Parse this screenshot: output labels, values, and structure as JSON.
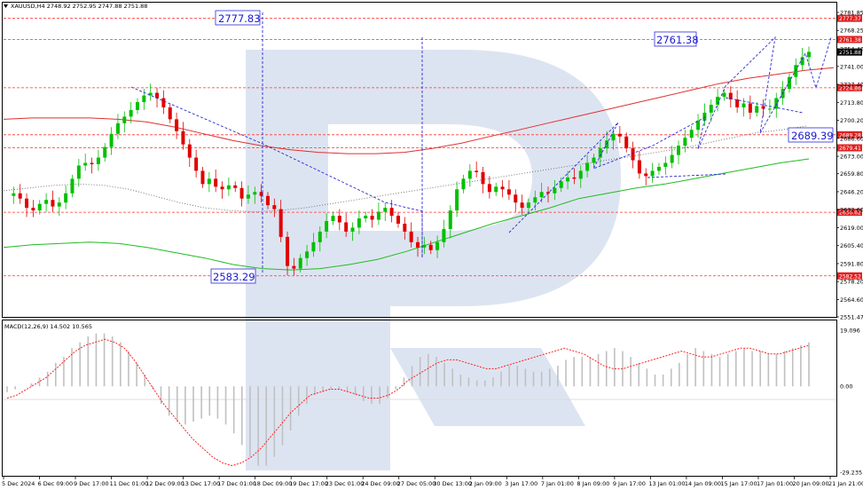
{
  "header": {
    "symbol_label": "XAUUSD,H4",
    "ohlc": "2748.92 2752.95 2747.88 2751.88",
    "macd_label": "MACD(12,26,9) 14.502 10.565"
  },
  "colors": {
    "bull": "#00c000",
    "bear": "#e00000",
    "ma_slow": "#e03030",
    "ma_green": "#22bb22",
    "ma_dotted": "#777777",
    "levels": "#ff3333",
    "annotations": "#2222cc",
    "watermark": "#dce3f0",
    "macd_hist": "#c0c0c0",
    "macd_signal": "#ff2020"
  },
  "chart_data": [
    {
      "type": "candlestick",
      "symbol": "XAUUSD",
      "timeframe": "H4",
      "ylim": [
        2551.47,
        2781.85
      ],
      "y_ticks": [
        "2781.85",
        "2768.25",
        "2754.40",
        "2741.00",
        "2727.40",
        "2713.80",
        "2700.20",
        "2686.60",
        "2673.00",
        "2659.80",
        "2646.20",
        "2632.60",
        "2619.00",
        "2605.40",
        "2591.80",
        "2578.20",
        "2564.60",
        "2551.47"
      ],
      "x_ticks": [
        "5 Dec 2024",
        "6 Dec 09:00",
        "9 Dec 17:00",
        "11 Dec 01:00",
        "12 Dec 09:00",
        "13 Dec 17:00",
        "17 Dec 01:00",
        "18 Dec 09:00",
        "19 Dec 17:00",
        "23 Dec 01:00",
        "24 Dec 09:00",
        "27 Dec 05:00",
        "30 Dec 13:00",
        "2 Jan 09:00",
        "3 Jan 17:00",
        "7 Jan 01:00",
        "8 Jan 09:00",
        "9 Jan 17:00",
        "13 Jan 01:00",
        "14 Jan 09:00",
        "15 Jan 17:00",
        "17 Jan 01:00",
        "20 Jan 09:00",
        "21 Jan 21:00"
      ],
      "close_path": [
        2643,
        2645,
        2641,
        2634,
        2632,
        2637,
        2640,
        2635,
        2638,
        2645,
        2656,
        2666,
        2668,
        2667,
        2672,
        2680,
        2690,
        2698,
        2703,
        2708,
        2714,
        2719,
        2721,
        2717,
        2710,
        2701,
        2692,
        2682,
        2672,
        2662,
        2652,
        2656,
        2650,
        2648,
        2651,
        2649,
        2641,
        2644,
        2646,
        2643,
        2636,
        2633,
        2612,
        2590,
        2588,
        2596,
        2601,
        2608,
        2616,
        2624,
        2628,
        2623,
        2616,
        2619,
        2626,
        2628,
        2625,
        2631,
        2634,
        2628,
        2622,
        2616,
        2608,
        2604,
        2606,
        2602,
        2608,
        2618,
        2632,
        2648,
        2656,
        2662,
        2661,
        2652,
        2646,
        2650,
        2648,
        2644,
        2638,
        2634,
        2638,
        2642,
        2646,
        2645,
        2649,
        2654,
        2657,
        2656,
        2662,
        2668,
        2672,
        2679,
        2685,
        2690,
        2688,
        2679,
        2670,
        2660,
        2658,
        2662,
        2665,
        2668,
        2674,
        2681,
        2687,
        2693,
        2700,
        2706,
        2712,
        2718,
        2721,
        2716,
        2710,
        2713,
        2706,
        2711,
        2709,
        2709,
        2717,
        2724,
        2733,
        2742,
        2748,
        2752
      ],
      "horizontal_levels": [
        2777.37,
        2761.38,
        2724.86,
        2689.28,
        2679.41,
        2630.62,
        2582.52
      ],
      "level_tags": [
        "2777.37",
        "2761.38",
        "2724.86",
        "2689.28",
        "2679.41",
        "2630.62",
        "2582.52"
      ],
      "current_price": "2751.88",
      "annotations": [
        "2777.83",
        "2761.38",
        "2689.39",
        "2583.29"
      ],
      "ma_slow": [
        2701,
        2702,
        2702,
        2702,
        2701,
        2699,
        2695,
        2690,
        2685,
        2681,
        2678,
        2676,
        2675,
        2675,
        2676,
        2679,
        2683,
        2688,
        2693,
        2698,
        2703,
        2708,
        2713,
        2718,
        2723,
        2728,
        2732,
        2735,
        2738,
        2740
      ],
      "ma_green": [
        2604,
        2606,
        2607,
        2608,
        2607,
        2604,
        2600,
        2596,
        2591,
        2588,
        2587,
        2588,
        2591,
        2595,
        2601,
        2608,
        2615,
        2622,
        2628,
        2634,
        2641,
        2645,
        2649,
        2652,
        2656,
        2660,
        2664,
        2668,
        2671
      ],
      "ma_dotted": [
        2647,
        2649,
        2651,
        2652,
        2651,
        2648,
        2643,
        2638,
        2634,
        2632,
        2631,
        2632,
        2634,
        2637,
        2640,
        2643,
        2646,
        2649,
        2652,
        2655,
        2658,
        2661,
        2664,
        2667,
        2670,
        2673,
        2676,
        2679,
        2683,
        2687,
        2691,
        2693,
        2696
      ]
    },
    {
      "type": "macd",
      "title": "MACD(12,26,9) 14.502 10.565",
      "ylim": [
        -29.235,
        19.096
      ],
      "y_ticks": [
        "19.096",
        "0.00",
        "-29.235"
      ],
      "histogram": [
        -2,
        -1,
        0,
        1,
        3,
        5,
        8,
        10,
        13,
        15,
        17,
        18,
        18,
        17,
        15,
        12,
        8,
        4,
        -1,
        -6,
        -10,
        -12,
        -13,
        -12,
        -11,
        -10,
        -11,
        -13,
        -16,
        -20,
        -24,
        -27,
        -27,
        -24,
        -20,
        -15,
        -10,
        -6,
        -3,
        -2,
        -1,
        -1,
        -2,
        -3,
        -5,
        -6,
        -6,
        -4,
        -1,
        3,
        7,
        10,
        11,
        10,
        8,
        6,
        4,
        3,
        2,
        2,
        3,
        5,
        7,
        7,
        6,
        5,
        5,
        6,
        7,
        9,
        10,
        10,
        10,
        11,
        12,
        13,
        12,
        10,
        8,
        6,
        4,
        4,
        6,
        8,
        11,
        13,
        12,
        11,
        10,
        11,
        12,
        13,
        12,
        12,
        11,
        11,
        12,
        13,
        14,
        15
      ],
      "signal": [
        -4,
        -3,
        -1,
        1,
        3,
        6,
        9,
        12,
        14,
        15,
        16,
        15,
        13,
        9,
        4,
        -1,
        -6,
        -10,
        -14,
        -18,
        -21,
        -24,
        -26,
        -27,
        -26,
        -24,
        -21,
        -17,
        -13,
        -9,
        -6,
        -3,
        -2,
        -1,
        -1,
        -2,
        -3,
        -4,
        -4,
        -3,
        -1,
        2,
        4,
        6,
        8,
        9,
        9,
        8,
        7,
        6,
        6,
        7,
        8,
        9,
        10,
        11,
        12,
        13,
        12,
        11,
        9,
        7,
        6,
        6,
        7,
        8,
        9,
        10,
        11,
        12,
        11,
        10,
        10,
        11,
        12,
        13,
        13,
        12,
        11,
        11,
        12,
        13,
        14
      ]
    }
  ]
}
